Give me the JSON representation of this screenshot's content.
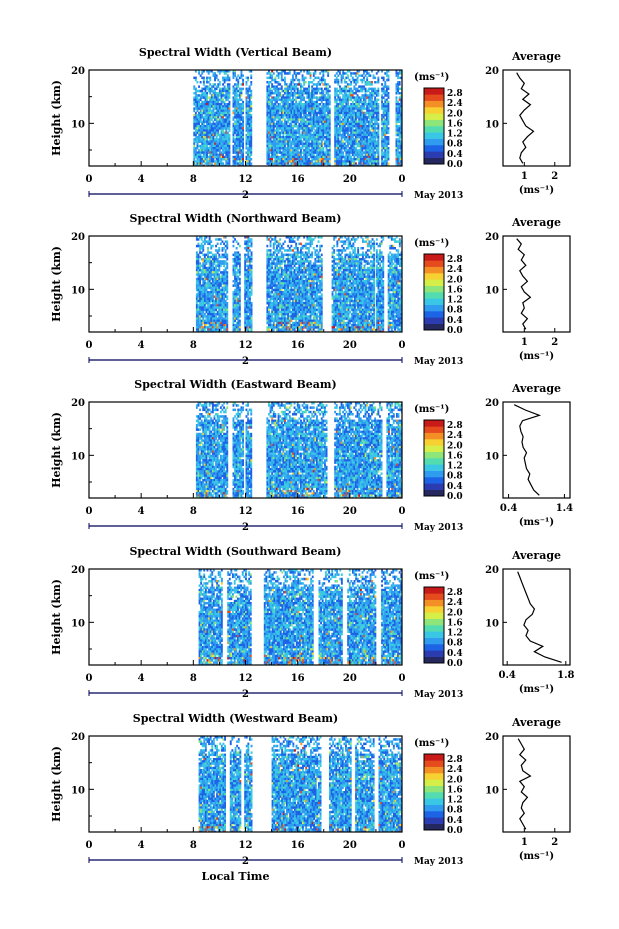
{
  "colors": {
    "colorbar_stops": [
      "#25285f",
      "#2b3bb0",
      "#1d63e6",
      "#2f9cf0",
      "#39c7e5",
      "#53dcb0",
      "#8ee67a",
      "#d6ee48",
      "#f7d032",
      "#f48f26",
      "#e64b1e",
      "#c81a18"
    ],
    "axis": "#000000",
    "time_axis_marker": "#00005a"
  },
  "chart_data": [
    {
      "type": "heatmap",
      "title": "Spectral Width (Vertical Beam)",
      "ylabel": "Height (km)",
      "ylim": [
        2,
        20
      ],
      "yticks": [
        "20",
        "10"
      ],
      "xlim": [
        0,
        24
      ],
      "xticks": [
        "0",
        "4",
        "8",
        "12",
        "16",
        "20",
        "0"
      ],
      "time_axis_day": "2",
      "month_label": "May 2013",
      "colorbar": {
        "unit": "(ms⁻¹)",
        "ticks": [
          "2.8",
          "2.4",
          "2.0",
          "1.6",
          "1.2",
          "0.8",
          "0.4",
          "0.0"
        ],
        "range": [
          0,
          3.0
        ]
      },
      "coverage": [
        [
          8.0,
          10.8
        ],
        [
          11.0,
          11.8
        ],
        [
          12.0,
          12.4
        ],
        [
          13.6,
          18.4
        ],
        [
          18.8,
          22.2
        ],
        [
          22.4,
          23.0
        ],
        [
          23.5,
          24.0
        ]
      ],
      "profile": {
        "title": "Average",
        "xlabel": "(ms⁻¹)",
        "xticks": [
          "1",
          "2"
        ],
        "xlim": [
          0.3,
          2.5
        ],
        "yticks": [
          "20",
          "10"
        ],
        "height_km": [
          2.5,
          3.5,
          4.5,
          5.5,
          6.5,
          7.5,
          8.5,
          9.5,
          10.5,
          11.5,
          12.5,
          13.5,
          14.5,
          15.5,
          16.5,
          17.5,
          18.5,
          19.5
        ],
        "width": [
          0.95,
          0.85,
          0.9,
          1.05,
          0.95,
          1.1,
          1.3,
          1.05,
          0.95,
          0.85,
          1.0,
          1.2,
          0.95,
          1.15,
          0.9,
          1.0,
          0.85,
          0.75
        ]
      }
    },
    {
      "type": "heatmap",
      "title": "Spectral Width (Northward Beam)",
      "ylabel": "Height (km)",
      "ylim": [
        2,
        20
      ],
      "yticks": [
        "20",
        "10"
      ],
      "xlim": [
        0,
        24
      ],
      "xticks": [
        "0",
        "4",
        "8",
        "12",
        "16",
        "20",
        "0"
      ],
      "time_axis_day": "2",
      "month_label": "May 2013",
      "colorbar": {
        "unit": "(ms⁻¹)",
        "ticks": [
          "2.8",
          "2.4",
          "2.0",
          "1.6",
          "1.2",
          "0.8",
          "0.4",
          "0.0"
        ],
        "range": [
          0,
          3.0
        ]
      },
      "coverage": [
        [
          8.2,
          10.6
        ],
        [
          11.0,
          11.6
        ],
        [
          11.9,
          12.4
        ],
        [
          13.6,
          17.8
        ],
        [
          18.6,
          21.8
        ],
        [
          22.0,
          22.6
        ],
        [
          22.9,
          24.0
        ]
      ],
      "profile": {
        "title": "Average",
        "xlabel": "(ms⁻¹)",
        "xticks": [
          "1",
          "2"
        ],
        "xlim": [
          0.3,
          2.5
        ],
        "yticks": [
          "20",
          "10"
        ],
        "height_km": [
          2.5,
          3.5,
          4.5,
          5.5,
          6.5,
          7.5,
          8.5,
          9.5,
          10.5,
          11.5,
          12.5,
          13.5,
          14.5,
          15.5,
          16.5,
          17.5,
          18.5,
          19.5
        ],
        "width": [
          1.05,
          0.95,
          1.1,
          0.9,
          1.0,
          0.95,
          1.2,
          1.0,
          0.9,
          1.1,
          0.95,
          0.85,
          1.05,
          0.9,
          1.0,
          0.8,
          0.9,
          0.75
        ]
      }
    },
    {
      "type": "heatmap",
      "title": "Spectral Width (Eastward Beam)",
      "ylabel": "Height (km)",
      "ylim": [
        2,
        20
      ],
      "yticks": [
        "20",
        "10"
      ],
      "xlim": [
        0,
        24
      ],
      "xticks": [
        "0",
        "4",
        "8",
        "12",
        "16",
        "20",
        "0"
      ],
      "time_axis_day": "2",
      "month_label": "May 2013",
      "colorbar": {
        "unit": "(ms⁻¹)",
        "ticks": [
          "2.8",
          "2.4",
          "2.0",
          "1.6",
          "1.2",
          "0.8",
          "0.4",
          "0.0"
        ],
        "range": [
          0,
          3.0
        ]
      },
      "coverage": [
        [
          8.2,
          10.6
        ],
        [
          11.0,
          11.8
        ],
        [
          12.0,
          12.4
        ],
        [
          13.6,
          18.2
        ],
        [
          18.8,
          22.4
        ],
        [
          22.8,
          24.0
        ]
      ],
      "profile": {
        "title": "Average",
        "xlabel": "(ms⁻¹)",
        "xticks": [
          "0.4",
          "1.4"
        ],
        "xlim": [
          0.3,
          1.5
        ],
        "yticks": [
          "20",
          "10"
        ],
        "height_km": [
          2.5,
          3.5,
          4.5,
          5.5,
          6.5,
          7.5,
          8.5,
          9.5,
          10.5,
          11.5,
          12.5,
          13.5,
          14.5,
          15.5,
          16.5,
          17.5,
          18.5,
          19.5
        ],
        "width": [
          0.95,
          0.85,
          0.8,
          0.75,
          0.78,
          0.72,
          0.7,
          0.68,
          0.72,
          0.66,
          0.64,
          0.66,
          0.62,
          0.6,
          0.65,
          0.95,
          0.7,
          0.5
        ]
      }
    },
    {
      "type": "heatmap",
      "title": "Spectral Width (Southward Beam)",
      "ylabel": "Height (km)",
      "ylim": [
        2,
        20
      ],
      "yticks": [
        "20",
        "10"
      ],
      "xlim": [
        0,
        24
      ],
      "xticks": [
        "0",
        "4",
        "8",
        "12",
        "16",
        "20",
        "0"
      ],
      "time_axis_day": "2",
      "month_label": "May 2013",
      "colorbar": {
        "unit": "(ms⁻¹)",
        "ticks": [
          "2.8",
          "2.4",
          "2.0",
          "1.6",
          "1.2",
          "0.8",
          "0.4",
          "0.0"
        ],
        "range": [
          0,
          3.0
        ]
      },
      "coverage": [
        [
          8.4,
          10.2
        ],
        [
          10.6,
          11.0
        ],
        [
          11.1,
          12.4
        ],
        [
          13.4,
          17.2
        ],
        [
          17.6,
          19.4
        ],
        [
          19.8,
          22.0
        ],
        [
          22.4,
          24.0
        ]
      ],
      "profile": {
        "title": "Average",
        "xlabel": "(ms⁻¹)",
        "xticks": [
          "0.4",
          "1.8"
        ],
        "xlim": [
          0.3,
          1.9
        ],
        "yticks": [
          "20",
          "10"
        ],
        "height_km": [
          2.5,
          3.5,
          4.5,
          5.5,
          6.5,
          7.5,
          8.5,
          9.5,
          10.5,
          11.5,
          12.5,
          13.5,
          14.5,
          15.5,
          16.5,
          17.5,
          18.5,
          19.5
        ],
        "width": [
          1.7,
          1.3,
          1.05,
          1.25,
          0.95,
          0.85,
          0.9,
          0.8,
          0.85,
          1.0,
          1.05,
          0.95,
          0.9,
          0.85,
          0.8,
          0.75,
          0.7,
          0.65
        ]
      }
    },
    {
      "type": "heatmap",
      "title": "Spectral Width (Westward Beam)",
      "ylabel": "Height (km)",
      "ylim": [
        2,
        20
      ],
      "yticks": [
        "20",
        "10"
      ],
      "xlim": [
        0,
        24
      ],
      "xticks": [
        "0",
        "4",
        "8",
        "12",
        "16",
        "20",
        "0"
      ],
      "time_axis_day": "2",
      "month_label": "May 2013",
      "xlabel": "Local Time",
      "colorbar": {
        "unit": "(ms⁻¹)",
        "ticks": [
          "2.8",
          "2.4",
          "2.0",
          "1.6",
          "1.2",
          "0.8",
          "0.4",
          "0.0"
        ],
        "range": [
          0,
          3.0
        ]
      },
      "coverage": [
        [
          8.4,
          10.4
        ],
        [
          10.8,
          11.6
        ],
        [
          11.9,
          12.4
        ],
        [
          14.0,
          17.8
        ],
        [
          18.4,
          20.0
        ],
        [
          20.4,
          21.8
        ],
        [
          22.2,
          24.0
        ]
      ],
      "profile": {
        "title": "Average",
        "xlabel": "(ms⁻¹)",
        "xticks": [
          "1",
          "2"
        ],
        "xlim": [
          0.3,
          2.5
        ],
        "yticks": [
          "20",
          "10"
        ],
        "height_km": [
          2.5,
          3.5,
          4.5,
          5.5,
          6.5,
          7.5,
          8.5,
          9.5,
          10.5,
          11.5,
          12.5,
          13.5,
          14.5,
          15.5,
          16.5,
          17.5,
          18.5,
          19.5
        ],
        "width": [
          1.05,
          0.95,
          0.85,
          1.0,
          0.9,
          0.95,
          1.1,
          0.9,
          1.0,
          0.85,
          1.2,
          0.95,
          0.9,
          1.05,
          0.85,
          1.0,
          0.9,
          0.8
        ]
      }
    }
  ]
}
